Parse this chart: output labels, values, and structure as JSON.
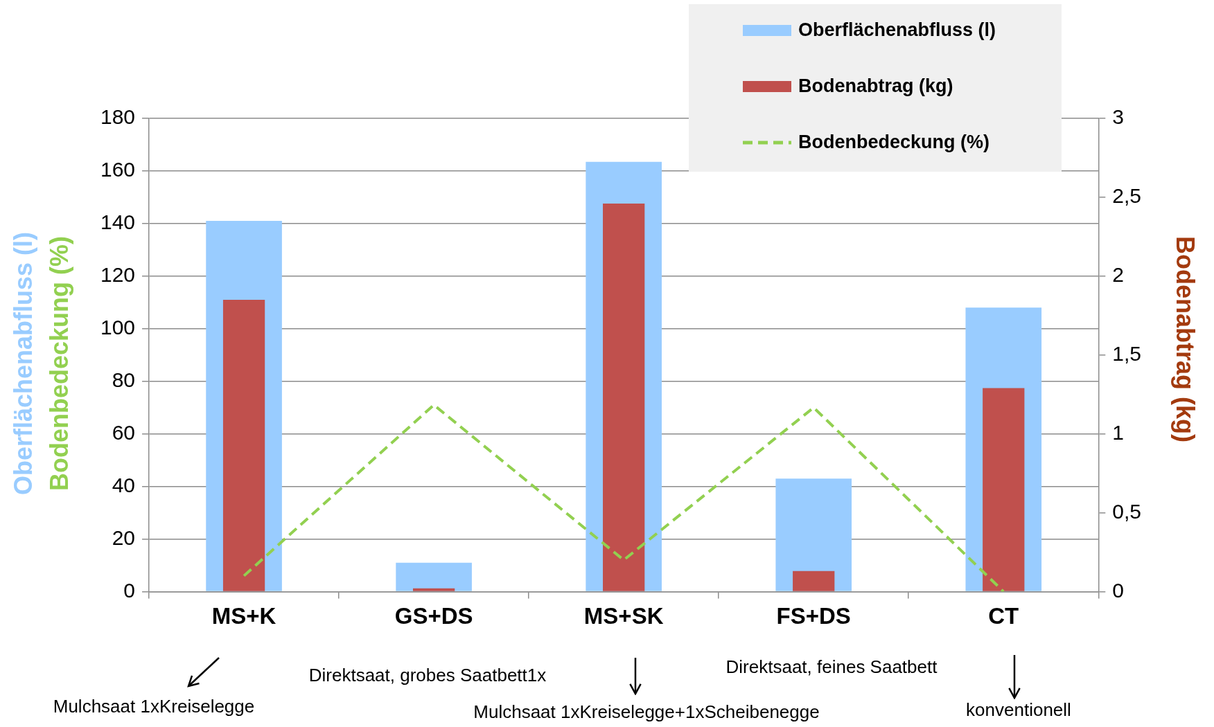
{
  "chart_data": {
    "type": "bar",
    "ylabel": "Oberflächenabfluss (l)\nBodenbedeckung (%)",
    "y2label": "Bodenabtrag (kg)",
    "categories": [
      "MS+K",
      "GS+DS",
      "MS+SK",
      "FS+DS",
      "CT"
    ],
    "series": [
      {
        "name": "Oberflächenabfluss (l)",
        "color": "#99ccff",
        "values": [
          141,
          11,
          163.5,
          43,
          108
        ]
      },
      {
        "name": "Bodenabtrag (kg)",
        "axis": "y2",
        "color": "#c0504d",
        "values": [
          1.85,
          0.02,
          2.46,
          0.13,
          1.29
        ]
      },
      {
        "name": "Bodenbedeckung (%)",
        "type": "line",
        "color": "#92d050",
        "line_style": "dashed",
        "marker": "none",
        "values": [
          6,
          71,
          12,
          70,
          0
        ]
      }
    ],
    "ylim": [
      0,
      180
    ],
    "yticks": [
      0,
      20,
      40,
      60,
      80,
      100,
      120,
      140,
      160,
      180
    ],
    "y2lim": [
      0,
      3
    ],
    "y2ticks": [
      0,
      {
        "value": 0.5,
        "label": "0,5"
      },
      1,
      {
        "value": 1.5,
        "label": "1,5"
      },
      2,
      {
        "value": 2.5,
        "label": "2,5"
      },
      3
    ],
    "grid": "y",
    "legend": "top right",
    "annotations": [
      "Mulchsaat 1xKreiselegge",
      "Direktsaat, grobes Saatbett1x",
      "Mulchsaat 1xKreiselegge+1xScheibenegge",
      "Direktsaat, feines Saatbett",
      "konventionell"
    ]
  }
}
